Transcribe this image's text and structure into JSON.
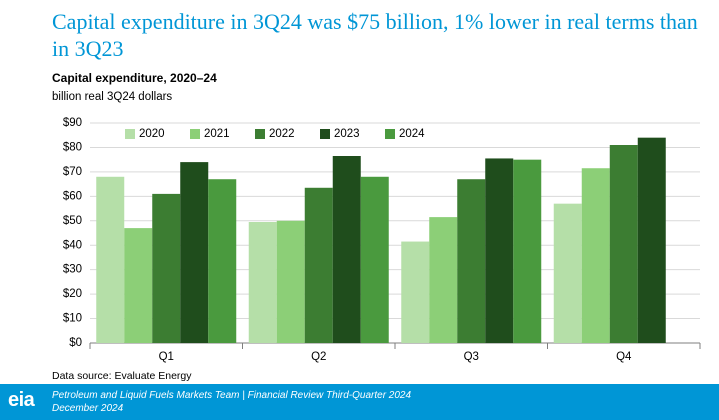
{
  "chart_data": {
    "type": "bar",
    "title": "Capital expenditure in 3Q24 was $75 billion, 1% lower in real terms than in 3Q23",
    "subtitle": "Capital expenditure, 2020–24",
    "unit": "billion real 3Q24 dollars",
    "source": "Data source: Evaluate Energy",
    "categories": [
      "Q1",
      "Q2",
      "Q3",
      "Q4"
    ],
    "series": [
      {
        "name": "2020",
        "color": "#b5dfa8",
        "values": [
          68,
          49.5,
          41.5,
          57
        ]
      },
      {
        "name": "2021",
        "color": "#8ccf77",
        "values": [
          47,
          50,
          51.5,
          71.5
        ]
      },
      {
        "name": "2022",
        "color": "#3c7d32",
        "values": [
          61,
          63.5,
          67,
          81
        ]
      },
      {
        "name": "2023",
        "color": "#1f4d1c",
        "values": [
          74,
          76.5,
          75.5,
          84
        ]
      },
      {
        "name": "2024",
        "color": "#4a9a3e",
        "values": [
          67,
          68,
          75,
          null
        ]
      }
    ],
    "ylim": [
      0,
      90
    ],
    "yticks": [
      {
        "value": 0,
        "label": "$0"
      },
      {
        "value": 10,
        "label": "$10"
      },
      {
        "value": 20,
        "label": "$20"
      },
      {
        "value": 30,
        "label": "$30"
      },
      {
        "value": 40,
        "label": "$40"
      },
      {
        "value": 50,
        "label": "$50"
      },
      {
        "value": 60,
        "label": "$60"
      },
      {
        "value": 70,
        "label": "$70"
      },
      {
        "value": 80,
        "label": "$80"
      },
      {
        "value": 90,
        "label": "$90"
      }
    ],
    "grid": true,
    "legend": "top"
  },
  "footer": {
    "logo": "eia",
    "line1": "Petroleum and Liquid Fuels Markets Team | Financial Review Third-Quarter 2024",
    "line2": "December 2024"
  }
}
